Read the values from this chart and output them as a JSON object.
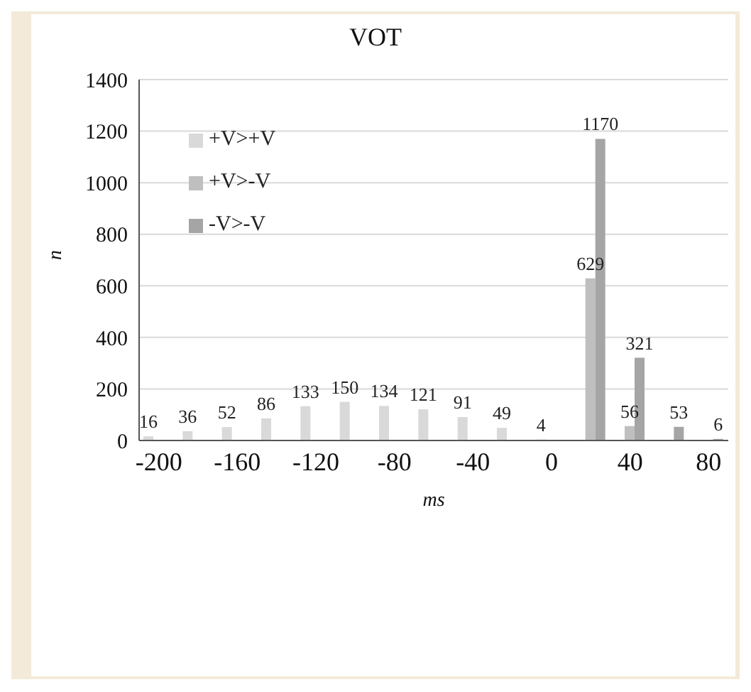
{
  "chart_data": {
    "type": "bar",
    "title": "VOT",
    "xlabel": "ms",
    "ylabel": "n",
    "categories": [
      "-200",
      null,
      "-160",
      null,
      "-120",
      null,
      "-80",
      null,
      "-40",
      null,
      "0",
      null,
      "40",
      null,
      "80"
    ],
    "series": [
      {
        "name": "+V>+V",
        "color": "#d9d9d9",
        "values": [
          16,
          36,
          52,
          86,
          133,
          150,
          134,
          121,
          91,
          49,
          4,
          null,
          null,
          null,
          null
        ]
      },
      {
        "name": "+V>-V",
        "color": "#bfbfbf",
        "values": [
          null,
          null,
          null,
          null,
          null,
          null,
          null,
          null,
          null,
          null,
          null,
          629,
          56,
          null,
          null
        ]
      },
      {
        "name": "-V>-V",
        "color": "#a5a5a5",
        "values": [
          null,
          null,
          null,
          null,
          null,
          null,
          null,
          null,
          null,
          null,
          null,
          1170,
          321,
          53,
          6
        ]
      }
    ],
    "ylim": [
      0,
      1400
    ],
    "yticks": [
      0,
      200,
      400,
      600,
      800,
      1000,
      1200,
      1400
    ],
    "grid": "y",
    "legend": "top left",
    "data_labels": true
  }
}
